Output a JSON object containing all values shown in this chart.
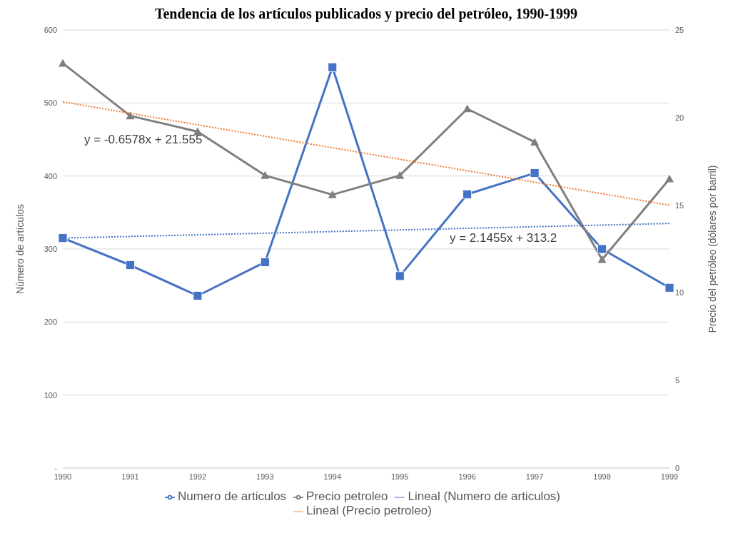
{
  "chart_data": {
    "type": "line",
    "title": "Tendencia de los artículos publicados y precio del petróleo, 1990-1999",
    "ylabel": "Número de artículos",
    "y2label": "Precio del petróleo (dólares por barril)",
    "categories": [
      "1990",
      "1991",
      "1992",
      "1993",
      "1994",
      "1995",
      "1996",
      "1997",
      "1998",
      "1999"
    ],
    "series": [
      {
        "name": "Numero de articulos",
        "color": "#4472c4",
        "marker": "square",
        "values": [
          315,
          278,
          236,
          282,
          549,
          263,
          375,
          404,
          300,
          247
        ]
      },
      {
        "name": "Precio petroleo",
        "color": "#7f7f7f",
        "marker": "triangle",
        "axis": "y2",
        "values": [
          23.1,
          20.1,
          19.2,
          16.7,
          15.6,
          16.7,
          20.5,
          18.6,
          11.9,
          16.5
        ]
      },
      {
        "name": "Lineal (Numero de articulos)",
        "color": "#4472c4",
        "line_style": "dotted",
        "values": [
          315,
          null,
          null,
          null,
          null,
          null,
          null,
          null,
          null,
          335
        ]
      },
      {
        "name": "Lineal (Precio petroleo)",
        "color": "#ed7d31",
        "line_style": "dotted",
        "axis": "y2",
        "values": [
          20.9,
          null,
          null,
          null,
          null,
          null,
          null,
          null,
          null,
          15.0
        ]
      }
    ],
    "ylim": [
      0,
      600
    ],
    "yticks": [
      {
        "value": 0,
        "label": "-"
      },
      100,
      200,
      300,
      400,
      500,
      600
    ],
    "y2lim": [
      0,
      25
    ],
    "y2ticks": [
      0,
      5,
      10,
      15,
      20,
      25
    ],
    "grid": "y",
    "legend": "bottom",
    "annotations": [
      "y = -0.6578x + 21.555",
      "y = 2.1455x + 313.2"
    ]
  }
}
